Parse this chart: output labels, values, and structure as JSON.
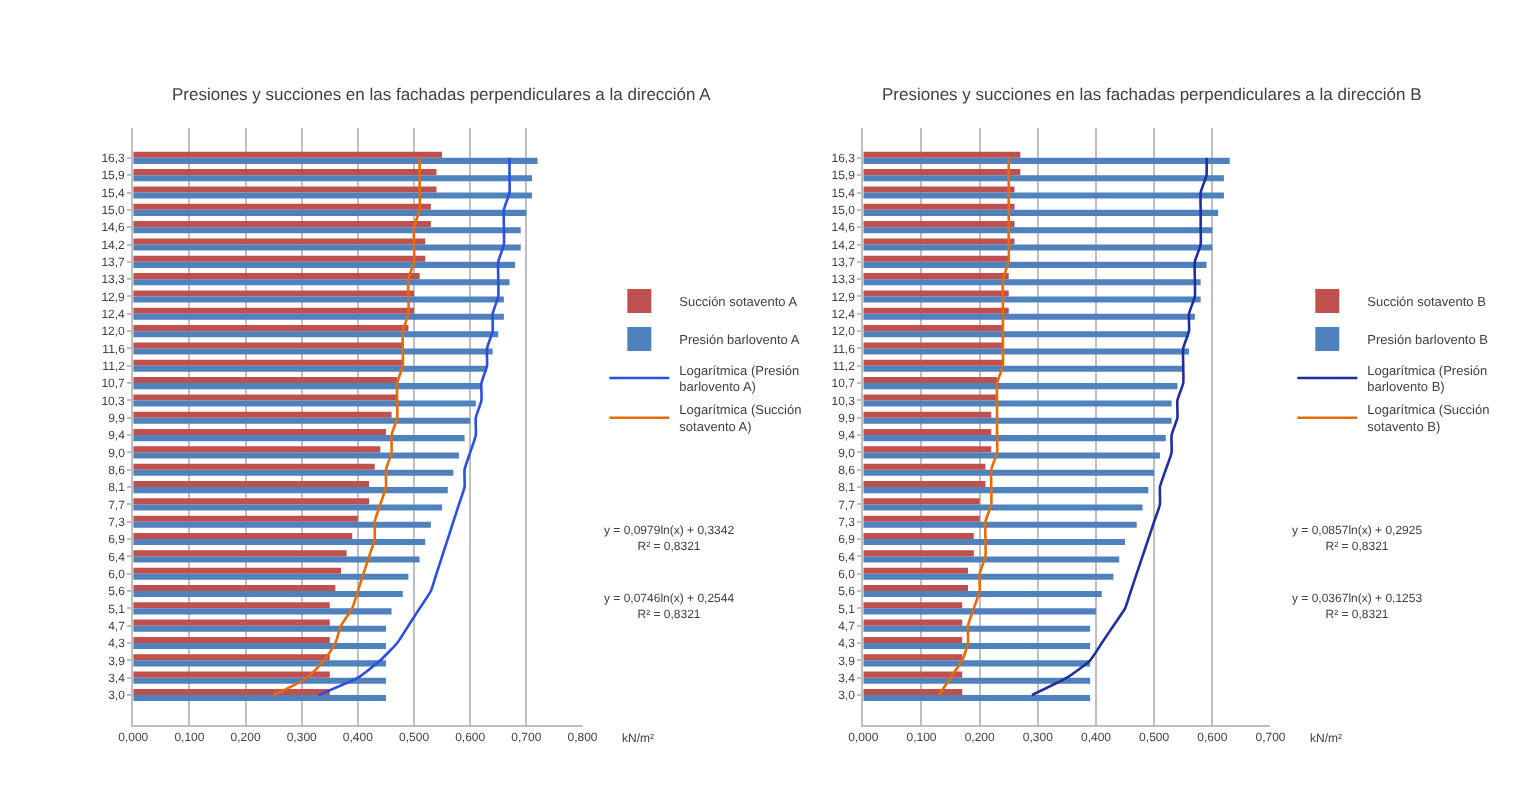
{
  "chart_data": [
    {
      "type": "bar",
      "orientation": "horizontal",
      "title": "Presiones y succiones en las fachadas perpendiculares a la dirección A",
      "xlabel": "kN/m²",
      "categories": [
        "16,3",
        "15,9",
        "15,4",
        "15,0",
        "14,6",
        "14,2",
        "13,7",
        "13,3",
        "12,9",
        "12,4",
        "12,0",
        "11,6",
        "11,2",
        "10,7",
        "10,3",
        "9,9",
        "9,4",
        "9,0",
        "8,6",
        "8,1",
        "7,7",
        "7,3",
        "6,9",
        "6,4",
        "6,0",
        "5,6",
        "5,1",
        "4,7",
        "4,3",
        "3,9",
        "3,4",
        "3,0"
      ],
      "series": [
        {
          "name": "Succión sotavento A",
          "color": "#c0504d",
          "values": [
            0.55,
            0.54,
            0.54,
            0.53,
            0.53,
            0.52,
            0.52,
            0.51,
            0.5,
            0.5,
            0.49,
            0.48,
            0.48,
            0.47,
            0.47,
            0.46,
            0.45,
            0.44,
            0.43,
            0.42,
            0.42,
            0.4,
            0.39,
            0.38,
            0.37,
            0.36,
            0.35,
            0.35,
            0.35,
            0.35,
            0.35,
            0.35
          ]
        },
        {
          "name": "Presión barlovento A",
          "color": "#4f81bd",
          "values": [
            0.72,
            0.71,
            0.71,
            0.7,
            0.69,
            0.69,
            0.68,
            0.67,
            0.66,
            0.66,
            0.65,
            0.64,
            0.63,
            0.62,
            0.61,
            0.6,
            0.59,
            0.58,
            0.57,
            0.56,
            0.55,
            0.53,
            0.52,
            0.51,
            0.49,
            0.48,
            0.46,
            0.45,
            0.45,
            0.45,
            0.45,
            0.45
          ]
        },
        {
          "name": "Logarítmica (Presión barlovento A)",
          "type": "line",
          "color": "#2b4fe0",
          "values": [
            0.67,
            0.67,
            0.67,
            0.66,
            0.66,
            0.66,
            0.65,
            0.65,
            0.65,
            0.64,
            0.64,
            0.63,
            0.63,
            0.62,
            0.62,
            0.61,
            0.61,
            0.6,
            0.59,
            0.59,
            0.58,
            0.57,
            0.56,
            0.55,
            0.54,
            0.53,
            0.51,
            0.49,
            0.47,
            0.44,
            0.4,
            0.33
          ]
        },
        {
          "name": "Logarítmica (Succión sotavento A)",
          "type": "line",
          "color": "#e46c0a",
          "values": [
            0.51,
            0.51,
            0.51,
            0.51,
            0.5,
            0.5,
            0.5,
            0.49,
            0.49,
            0.49,
            0.48,
            0.48,
            0.48,
            0.47,
            0.47,
            0.47,
            0.46,
            0.46,
            0.45,
            0.45,
            0.44,
            0.43,
            0.43,
            0.42,
            0.41,
            0.4,
            0.39,
            0.37,
            0.36,
            0.34,
            0.31,
            0.25
          ]
        }
      ],
      "xlim": [
        0,
        0.8
      ],
      "xticks": [
        {
          "value": 0,
          "label": "0,000"
        },
        {
          "value": 0.1,
          "label": "0,100"
        },
        {
          "value": 0.2,
          "label": "0,200"
        },
        {
          "value": 0.3,
          "label": "0,300"
        },
        {
          "value": 0.4,
          "label": "0,400"
        },
        {
          "value": 0.5,
          "label": "0,500"
        },
        {
          "value": 0.6,
          "label": "0,600"
        },
        {
          "value": 0.7,
          "label": "0,700"
        },
        {
          "value": 0.8,
          "label": "0,800"
        }
      ],
      "grid": "x",
      "legend": "right",
      "annotations": [
        "y = 0,0979ln(x) + 0,3342\nR² = 0,8321",
        "y = 0,0746ln(x) + 0,2544\nR² = 0,8321"
      ]
    },
    {
      "type": "bar",
      "orientation": "horizontal",
      "title": "Presiones y succiones en las fachadas perpendiculares a la dirección B",
      "xlabel": "kN/m²",
      "categories": [
        "16,3",
        "15,9",
        "15,4",
        "15,0",
        "14,6",
        "14,2",
        "13,7",
        "13,3",
        "12,9",
        "12,4",
        "12,0",
        "11,6",
        "11,2",
        "10,7",
        "10,3",
        "9,9",
        "9,4",
        "9,0",
        "8,6",
        "8,1",
        "7,7",
        "7,3",
        "6,9",
        "6,4",
        "6,0",
        "5,6",
        "5,1",
        "4,7",
        "4,3",
        "3,9",
        "3,4",
        "3,0"
      ],
      "series": [
        {
          "name": "Succión sotavento B",
          "color": "#c0504d",
          "values": [
            0.27,
            0.27,
            0.26,
            0.26,
            0.26,
            0.26,
            0.25,
            0.25,
            0.25,
            0.25,
            0.24,
            0.24,
            0.24,
            0.23,
            0.23,
            0.22,
            0.22,
            0.22,
            0.21,
            0.21,
            0.2,
            0.2,
            0.19,
            0.19,
            0.18,
            0.18,
            0.17,
            0.17,
            0.17,
            0.17,
            0.17,
            0.17
          ]
        },
        {
          "name": "Presión barlovento B",
          "color": "#4f81bd",
          "values": [
            0.63,
            0.62,
            0.62,
            0.61,
            0.6,
            0.6,
            0.59,
            0.58,
            0.58,
            0.57,
            0.56,
            0.56,
            0.55,
            0.54,
            0.53,
            0.53,
            0.52,
            0.51,
            0.5,
            0.49,
            0.48,
            0.47,
            0.45,
            0.44,
            0.43,
            0.41,
            0.4,
            0.39,
            0.39,
            0.39,
            0.39,
            0.39
          ]
        },
        {
          "name": "Logarítmica (Presión barlovento B)",
          "type": "line",
          "color": "#1f2f9f",
          "values": [
            0.59,
            0.59,
            0.58,
            0.58,
            0.58,
            0.58,
            0.57,
            0.57,
            0.57,
            0.56,
            0.56,
            0.55,
            0.55,
            0.55,
            0.54,
            0.54,
            0.53,
            0.53,
            0.52,
            0.51,
            0.51,
            0.5,
            0.49,
            0.48,
            0.47,
            0.46,
            0.45,
            0.43,
            0.41,
            0.39,
            0.35,
            0.29
          ]
        },
        {
          "name": "Logarítmica (Succión sotavento B)",
          "type": "line",
          "color": "#e46c0a",
          "values": [
            0.25,
            0.25,
            0.25,
            0.25,
            0.25,
            0.25,
            0.25,
            0.24,
            0.24,
            0.24,
            0.24,
            0.24,
            0.24,
            0.23,
            0.23,
            0.23,
            0.23,
            0.23,
            0.22,
            0.22,
            0.22,
            0.21,
            0.21,
            0.21,
            0.2,
            0.2,
            0.19,
            0.18,
            0.18,
            0.17,
            0.15,
            0.13
          ]
        }
      ],
      "xlim": [
        0,
        0.7
      ],
      "xticks": [
        {
          "value": 0,
          "label": "0,000"
        },
        {
          "value": 0.1,
          "label": "0,100"
        },
        {
          "value": 0.2,
          "label": "0,200"
        },
        {
          "value": 0.3,
          "label": "0,300"
        },
        {
          "value": 0.4,
          "label": "0,400"
        },
        {
          "value": 0.5,
          "label": "0,500"
        },
        {
          "value": 0.6,
          "label": "0,600"
        },
        {
          "value": 0.7,
          "label": "0,700"
        }
      ],
      "grid": "x",
      "legend": "right",
      "annotations": [
        "y = 0,0857ln(x) + 0,2925\nR² = 0,8321",
        "y = 0,0367ln(x) + 0,1253\nR² = 0,8321"
      ]
    }
  ]
}
